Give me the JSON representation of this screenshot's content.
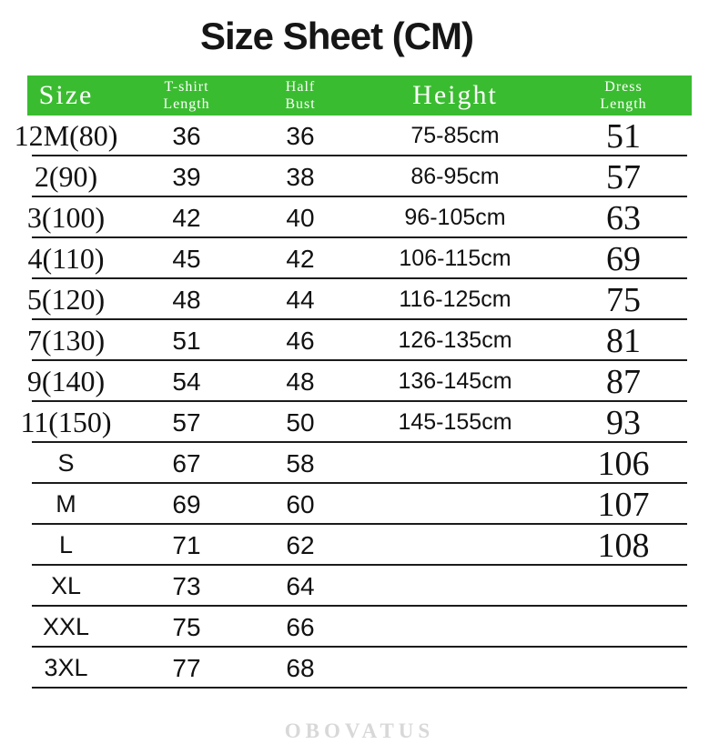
{
  "title": "Size Sheet (CM)",
  "watermark": "OBOVATUS",
  "colors": {
    "header_bg": "#3abc30",
    "header_text": "#ffffff",
    "divider": "#1b1b1b",
    "watermark": "#d8d8d8"
  },
  "table": {
    "headers": {
      "size": "Size",
      "tshirt": [
        "T-shirt",
        "Length"
      ],
      "half_bust": [
        "Half",
        "Bust"
      ],
      "height": "Height",
      "dress": [
        "Dress",
        "Length"
      ]
    },
    "rows": [
      {
        "size": "12M(80)",
        "tshirt_length": "36",
        "half_bust": "36",
        "height": "75-85cm",
        "dress_length": "51"
      },
      {
        "size": "2(90)",
        "tshirt_length": "39",
        "half_bust": "38",
        "height": "86-95cm",
        "dress_length": "57"
      },
      {
        "size": "3(100)",
        "tshirt_length": "42",
        "half_bust": "40",
        "height": "96-105cm",
        "dress_length": "63"
      },
      {
        "size": "4(110)",
        "tshirt_length": "45",
        "half_bust": "42",
        "height": "106-115cm",
        "dress_length": "69"
      },
      {
        "size": "5(120)",
        "tshirt_length": "48",
        "half_bust": "44",
        "height": "116-125cm",
        "dress_length": "75"
      },
      {
        "size": "7(130)",
        "tshirt_length": "51",
        "half_bust": "46",
        "height": "126-135cm",
        "dress_length": "81"
      },
      {
        "size": "9(140)",
        "tshirt_length": "54",
        "half_bust": "48",
        "height": "136-145cm",
        "dress_length": "87"
      },
      {
        "size": "11(150)",
        "tshirt_length": "57",
        "half_bust": "50",
        "height": "145-155cm",
        "dress_length": "93"
      },
      {
        "size": "S",
        "tshirt_length": "67",
        "half_bust": "58",
        "height": "",
        "dress_length": "106"
      },
      {
        "size": "M",
        "tshirt_length": "69",
        "half_bust": "60",
        "height": "",
        "dress_length": "107"
      },
      {
        "size": "L",
        "tshirt_length": "71",
        "half_bust": "62",
        "height": "",
        "dress_length": "108"
      },
      {
        "size": "XL",
        "tshirt_length": "73",
        "half_bust": "64",
        "height": "",
        "dress_length": ""
      },
      {
        "size": "XXL",
        "tshirt_length": "75",
        "half_bust": "66",
        "height": "",
        "dress_length": ""
      },
      {
        "size": "3XL",
        "tshirt_length": "77",
        "half_bust": "68",
        "height": "",
        "dress_length": ""
      }
    ]
  }
}
